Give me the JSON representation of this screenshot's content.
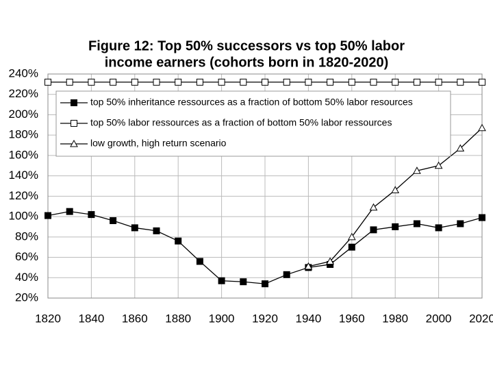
{
  "chart_data": {
    "type": "line",
    "title": [
      "Figure 12: Top 50% successors vs top 50% labor",
      "income earners (cohorts born in 1820-2020)"
    ],
    "x": [
      1820,
      1830,
      1840,
      1850,
      1860,
      1870,
      1880,
      1890,
      1900,
      1910,
      1920,
      1930,
      1940,
      1950,
      1960,
      1970,
      1980,
      1990,
      2000,
      2010,
      2020
    ],
    "series": [
      {
        "name": "top 50% inheritance ressources as a fraction of bottom 50% labor resources",
        "color": "#000000",
        "marker": "square-filled",
        "values": [
          101,
          105,
          102,
          96,
          89,
          86,
          76,
          56,
          37,
          36,
          34,
          43,
          50,
          53,
          70,
          87,
          90,
          93,
          89,
          93,
          99
        ]
      },
      {
        "name": "top 50% labor ressources as a fraction of bottom 50% labor ressources",
        "color": "#000000",
        "marker": "square-open",
        "values": [
          232,
          232,
          232,
          232,
          232,
          232,
          232,
          232,
          232,
          232,
          232,
          232,
          232,
          232,
          232,
          232,
          232,
          232,
          232,
          232,
          232
        ]
      },
      {
        "name": "low growth, high return scenario",
        "color": "#000000",
        "marker": "triangle-open",
        "values": [
          null,
          null,
          null,
          null,
          null,
          null,
          null,
          null,
          null,
          null,
          null,
          null,
          51,
          56,
          80,
          109,
          126,
          145,
          150,
          167,
          187
        ]
      }
    ],
    "xlim": [
      1820,
      2020
    ],
    "xticks": [
      1820,
      1840,
      1860,
      1880,
      1900,
      1920,
      1940,
      1960,
      1980,
      2000,
      2020
    ],
    "ylim": [
      20,
      240
    ],
    "yticks": [
      {
        "value": 20,
        "label": "20%"
      },
      {
        "value": 40,
        "label": "40%"
      },
      {
        "value": 60,
        "label": "60%"
      },
      {
        "value": 80,
        "label": "80%"
      },
      {
        "value": 100,
        "label": "100%"
      },
      {
        "value": 120,
        "label": "120%"
      },
      {
        "value": 140,
        "label": "140%"
      },
      {
        "value": 160,
        "label": "160%"
      },
      {
        "value": 180,
        "label": "180%"
      },
      {
        "value": 200,
        "label": "200%"
      },
      {
        "value": 220,
        "label": "220%"
      },
      {
        "value": 240,
        "label": "240%"
      }
    ],
    "grid": true,
    "legend": "top"
  }
}
